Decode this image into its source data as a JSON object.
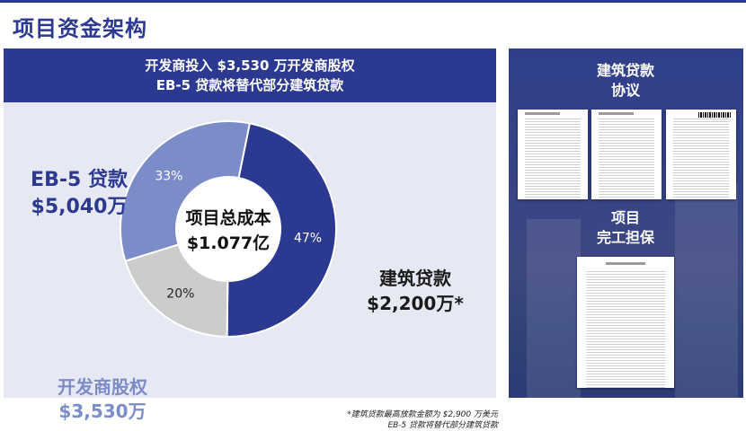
{
  "page": {
    "title": "项目资金架构"
  },
  "banner": {
    "line1": "开发商投入 $3,530 万开发商股权",
    "line2": "EB-5 贷款将替代部分建筑贷款"
  },
  "chart_data": {
    "type": "pie",
    "title": "",
    "center_label": [
      "项目总成本",
      "$1.077亿"
    ],
    "slices": [
      {
        "name": "EB-5 贷款",
        "amount": "$5,040万",
        "value": 47,
        "label": "47%",
        "color": "#2b3990"
      },
      {
        "name": "建筑贷款",
        "amount": "$2,200万*",
        "value": 20,
        "label": "20%",
        "color": "#cccccc"
      },
      {
        "name": "开发商股权",
        "amount": "$3,530万",
        "value": 33,
        "label": "33%",
        "color": "#7b8cc9"
      }
    ]
  },
  "labels": {
    "eb5_name": "EB-5 贷款",
    "eb5_amount": "$5,040万",
    "construction_name": "建筑贷款",
    "construction_amount": "$2,200万*",
    "equity_name": "开发商股权",
    "equity_amount": "$3,530万"
  },
  "footnote": {
    "line1": "*建筑贷款最高放款金额为 $2,900 万美元",
    "line2": "EB-5 贷款将替代部分建筑贷款"
  },
  "right_panel": {
    "doc1_title_line1": "建筑贷款",
    "doc1_title_line2": "协议",
    "doc2_title_line1": "项目",
    "doc2_title_line2": "完工担保"
  }
}
